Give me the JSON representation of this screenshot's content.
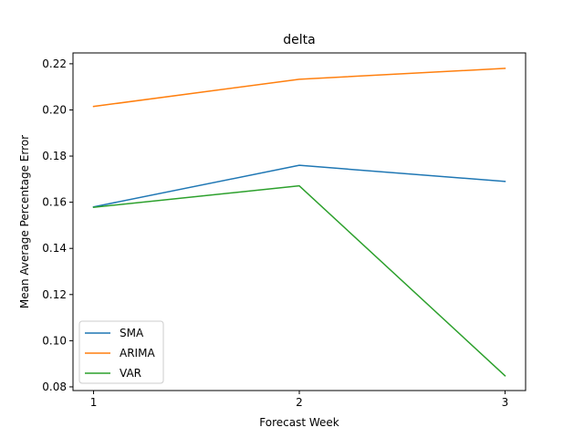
{
  "chart_data": {
    "type": "line",
    "title": "delta",
    "xlabel": "Forecast Week",
    "ylabel": "Mean Average Percentage Error",
    "x": [
      1,
      2,
      3
    ],
    "x_ticks": [
      "1",
      "2",
      "3"
    ],
    "y_ticks": [
      "0.08",
      "0.10",
      "0.12",
      "0.14",
      "0.16",
      "0.18",
      "0.20",
      "0.22"
    ],
    "y_tick_values": [
      0.08,
      0.1,
      0.12,
      0.14,
      0.16,
      0.18,
      0.2,
      0.22
    ],
    "xlim": [
      0.9,
      3.1
    ],
    "ylim": [
      0.0784,
      0.2247
    ],
    "grid": false,
    "legend_position": "lower-left",
    "series": [
      {
        "name": "SMA",
        "color": "#1f77b4",
        "values": [
          0.158,
          0.176,
          0.169
        ]
      },
      {
        "name": "ARIMA",
        "color": "#ff7f0e",
        "values": [
          0.2015,
          0.2133,
          0.218
        ]
      },
      {
        "name": "VAR",
        "color": "#2ca02c",
        "values": [
          0.1578,
          0.1671,
          0.0848
        ]
      }
    ]
  }
}
